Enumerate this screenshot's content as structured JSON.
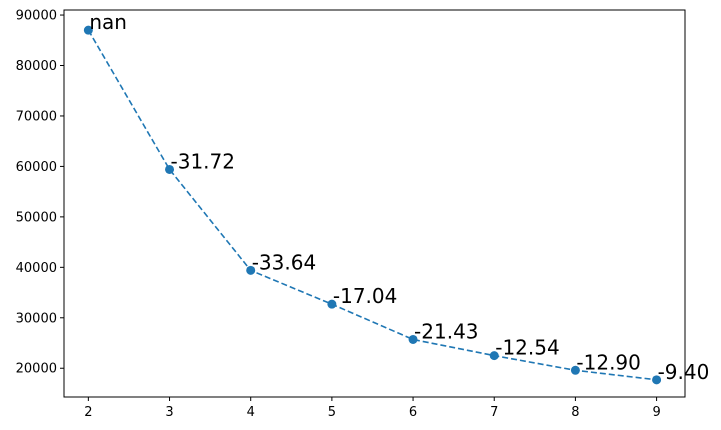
{
  "chart_data": {
    "type": "line",
    "title": "",
    "xlabel": "",
    "ylabel": "",
    "x": [
      2,
      3,
      4,
      5,
      6,
      7,
      8,
      9
    ],
    "series": [
      {
        "values": [
          87000,
          59400,
          39400,
          32700,
          25700,
          22500,
          19600,
          17700
        ],
        "labels": [
          "nan",
          "-31.72",
          "-33.64",
          "-17.04",
          "-21.43",
          "-12.54",
          "-12.90",
          "-9.40"
        ]
      }
    ],
    "xticks": [
      2,
      3,
      4,
      5,
      6,
      7,
      8,
      9
    ],
    "yticks": [
      20000,
      30000,
      40000,
      50000,
      60000,
      70000,
      80000,
      90000
    ],
    "xlim": [
      1.7,
      9.35
    ],
    "ylim": [
      14300,
      91000
    ],
    "grid": false,
    "line_style": "dashed",
    "marker": "circle",
    "color": "#1f77b4"
  }
}
